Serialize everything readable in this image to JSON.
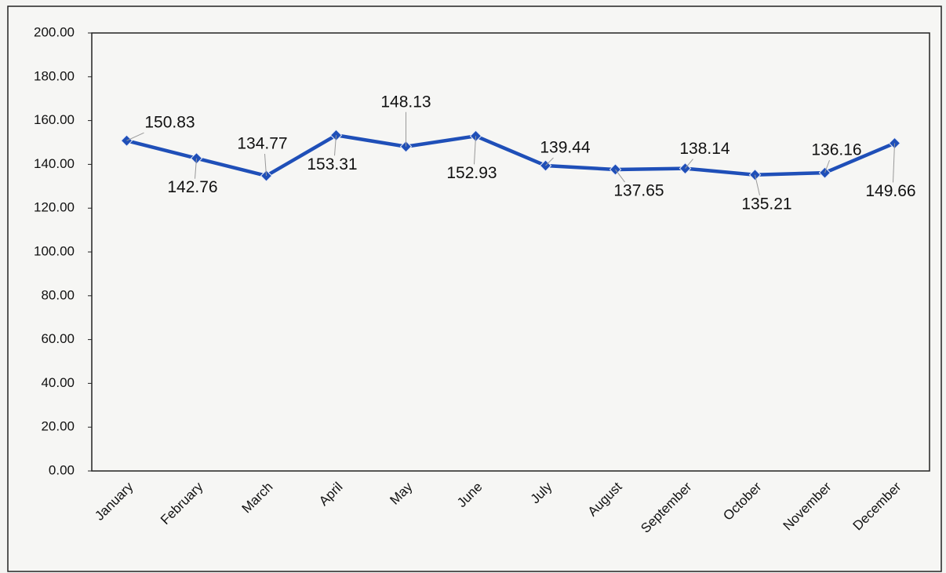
{
  "chart_data": {
    "type": "line",
    "categories": [
      "January",
      "February",
      "March",
      "April",
      "May",
      "June",
      "July",
      "August",
      "September",
      "October",
      "November",
      "December"
    ],
    "series": [
      {
        "name": null,
        "color": "#1f4fb8",
        "values": [
          150.83,
          142.76,
          134.77,
          153.31,
          148.13,
          152.93,
          139.44,
          137.65,
          138.14,
          135.21,
          136.16,
          149.66
        ]
      }
    ],
    "ylim": [
      0,
      200
    ],
    "yticks": [
      {
        "value": 0,
        "label": "0.00"
      },
      {
        "value": 20,
        "label": "20.00"
      },
      {
        "value": 40,
        "label": "40.00"
      },
      {
        "value": 60,
        "label": "60.00"
      },
      {
        "value": 80,
        "label": "80.00"
      },
      {
        "value": 100,
        "label": "100.00"
      },
      {
        "value": 120,
        "label": "120.00"
      },
      {
        "value": 140,
        "label": "140.00"
      },
      {
        "value": 160,
        "label": "160.00"
      },
      {
        "value": 180,
        "label": "180.00"
      },
      {
        "value": 200,
        "label": "200.00"
      }
    ]
  }
}
